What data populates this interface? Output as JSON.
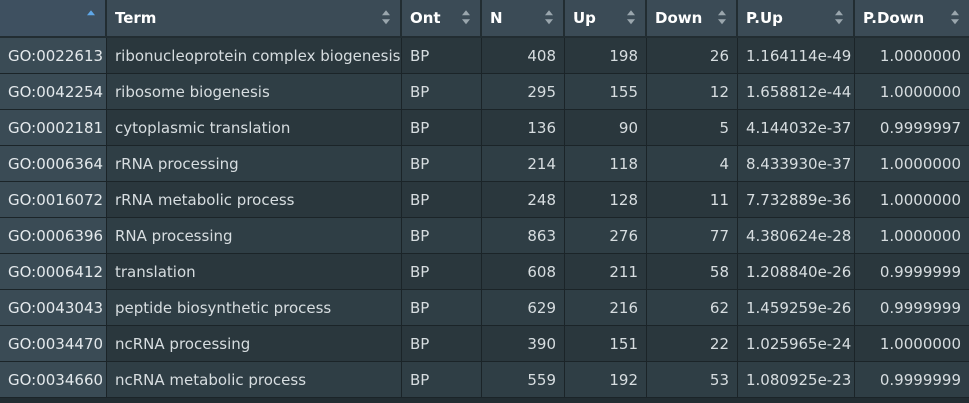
{
  "columns": [
    {
      "key": "rowname",
      "label": "",
      "sort": "asc"
    },
    {
      "key": "term",
      "label": "Term",
      "sort": "none"
    },
    {
      "key": "ont",
      "label": "Ont",
      "sort": "none"
    },
    {
      "key": "n",
      "label": "N",
      "sort": "none"
    },
    {
      "key": "up",
      "label": "Up",
      "sort": "none"
    },
    {
      "key": "down",
      "label": "Down",
      "sort": "none"
    },
    {
      "key": "pup",
      "label": "P.Up",
      "sort": "none"
    },
    {
      "key": "pdown",
      "label": "P.Down",
      "sort": "none"
    }
  ],
  "rows": [
    {
      "id": "GO:0022613",
      "term": "ribonucleoprotein complex biogenesis",
      "ont": "BP",
      "n": "408",
      "up": "198",
      "down": "26",
      "pup": "1.164114e-49",
      "pdown": "1.0000000"
    },
    {
      "id": "GO:0042254",
      "term": "ribosome biogenesis",
      "ont": "BP",
      "n": "295",
      "up": "155",
      "down": "12",
      "pup": "1.658812e-44",
      "pdown": "1.0000000"
    },
    {
      "id": "GO:0002181",
      "term": "cytoplasmic translation",
      "ont": "BP",
      "n": "136",
      "up": "90",
      "down": "5",
      "pup": "4.144032e-37",
      "pdown": "0.9999997"
    },
    {
      "id": "GO:0006364",
      "term": "rRNA processing",
      "ont": "BP",
      "n": "214",
      "up": "118",
      "down": "4",
      "pup": "8.433930e-37",
      "pdown": "1.0000000"
    },
    {
      "id": "GO:0016072",
      "term": "rRNA metabolic process",
      "ont": "BP",
      "n": "248",
      "up": "128",
      "down": "11",
      "pup": "7.732889e-36",
      "pdown": "1.0000000"
    },
    {
      "id": "GO:0006396",
      "term": "RNA processing",
      "ont": "BP",
      "n": "863",
      "up": "276",
      "down": "77",
      "pup": "4.380624e-28",
      "pdown": "1.0000000"
    },
    {
      "id": "GO:0006412",
      "term": "translation",
      "ont": "BP",
      "n": "608",
      "up": "211",
      "down": "58",
      "pup": "1.208840e-26",
      "pdown": "0.9999999"
    },
    {
      "id": "GO:0043043",
      "term": "peptide biosynthetic process",
      "ont": "BP",
      "n": "629",
      "up": "216",
      "down": "62",
      "pup": "1.459259e-26",
      "pdown": "0.9999999"
    },
    {
      "id": "GO:0034470",
      "term": "ncRNA processing",
      "ont": "BP",
      "n": "390",
      "up": "151",
      "down": "22",
      "pup": "1.025965e-24",
      "pdown": "1.0000000"
    },
    {
      "id": "GO:0034660",
      "term": "ncRNA metabolic process",
      "ont": "BP",
      "n": "559",
      "up": "192",
      "down": "53",
      "pup": "1.080925e-23",
      "pdown": "0.9999999"
    }
  ]
}
